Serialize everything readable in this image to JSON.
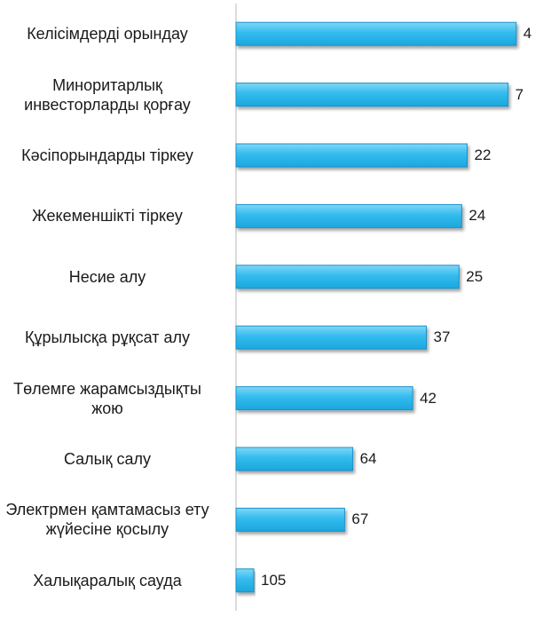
{
  "chart_data": {
    "type": "bar",
    "orientation": "horizontal",
    "categories": [
      [
        "Келісімдерді орындау"
      ],
      [
        "Миноритарлық",
        "инвесторларды қорғау"
      ],
      [
        "Кәсіпорындарды тіркеу"
      ],
      [
        "Жекеменшікті тіркеу"
      ],
      [
        "Несие алу"
      ],
      [
        "Құрылысқа рұқсат алу"
      ],
      [
        "Төлемге жарамсыздықты",
        "жою"
      ],
      [
        "Салық салу"
      ],
      [
        "Электрмен қамтамасыз ету",
        "жүйесіне қосылу"
      ],
      [
        "Халықаралық сауда"
      ]
    ],
    "values": [
      4,
      7,
      22,
      24,
      25,
      37,
      42,
      64,
      67,
      105
    ],
    "value_labels": [
      "4",
      "7",
      "22",
      "24",
      "25",
      "37",
      "42",
      "64",
      "67",
      "105"
    ],
    "bar_color": "#33bbee",
    "bar_edge_color": "#1e90c8",
    "axis_color": "#b8b8b8",
    "grid": false,
    "legend": "none",
    "title": "",
    "xlabel": "",
    "ylabel": ""
  }
}
